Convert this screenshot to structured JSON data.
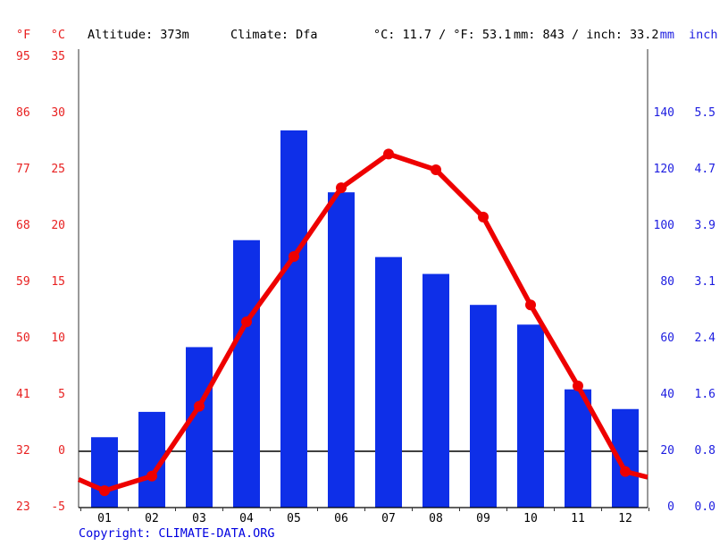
{
  "header": {
    "f_unit": "°F",
    "c_unit": "°C",
    "altitude": "Altitude: 373m",
    "climate": "Climate: Dfa",
    "avg_temp": "°C: 11.7 / °F: 53.1",
    "precip_total": "mm: 843 / inch: 33.2",
    "mm_unit": "mm",
    "inch_unit": "inch"
  },
  "axes": {
    "f_labels": [
      "95",
      "86",
      "77",
      "68",
      "59",
      "50",
      "41",
      "32",
      "23"
    ],
    "c_values": [
      35,
      30,
      25,
      20,
      15,
      10,
      5,
      0,
      -5
    ],
    "mm_values": [
      140,
      120,
      100,
      80,
      60,
      40,
      20,
      0
    ],
    "inch_labels": [
      "5.5",
      "4.7",
      "3.9",
      "3.1",
      "2.4",
      "1.6",
      "0.8",
      "0.0"
    ],
    "months": [
      "01",
      "02",
      "03",
      "04",
      "05",
      "06",
      "07",
      "08",
      "09",
      "10",
      "11",
      "12"
    ]
  },
  "chart_data": {
    "type": "composite",
    "categories": [
      "01",
      "02",
      "03",
      "04",
      "05",
      "06",
      "07",
      "08",
      "09",
      "10",
      "11",
      "12"
    ],
    "series": [
      {
        "name": "precipitation",
        "type": "bar",
        "unit": "mm",
        "values": [
          25,
          34,
          57,
          95,
          134,
          112,
          89,
          83,
          72,
          65,
          42,
          35
        ]
      },
      {
        "name": "temperature",
        "type": "line",
        "unit": "°C",
        "values": [
          -3.5,
          -2.2,
          4.0,
          11.5,
          17.3,
          23.4,
          26.4,
          25.0,
          20.8,
          13.0,
          5.8,
          -1.8
        ],
        "edge_left": -2.5,
        "edge_right": -2.3
      }
    ],
    "y_axis_temp_c": {
      "min": -5,
      "max": 35,
      "ticks": [
        -5,
        0,
        5,
        10,
        15,
        20,
        25,
        30,
        35
      ]
    },
    "y_axis_temp_f": {
      "ticks": [
        23,
        32,
        41,
        50,
        59,
        68,
        77,
        86,
        95
      ]
    },
    "y_axis_precip_mm": {
      "min": 0,
      "max": 140,
      "ticks": [
        0,
        20,
        40,
        60,
        80,
        100,
        120,
        140
      ]
    },
    "y_axis_precip_inch": {
      "ticks": [
        0.0,
        0.8,
        1.6,
        2.4,
        3.1,
        3.9,
        4.7,
        5.5
      ]
    },
    "title": "",
    "grid": false,
    "legend": "none"
  },
  "colors": {
    "bar": "#0e2fe8",
    "line": "#ee0000",
    "axis_red": "#e82020",
    "axis_blue": "#1c1ce0",
    "link": "#0000e0",
    "text": "#000000",
    "axis_line": "#333333",
    "zero_line": "#000000"
  },
  "footer": {
    "copyright_prefix": "Copyright: ",
    "link": "CLIMATE-DATA.ORG"
  }
}
